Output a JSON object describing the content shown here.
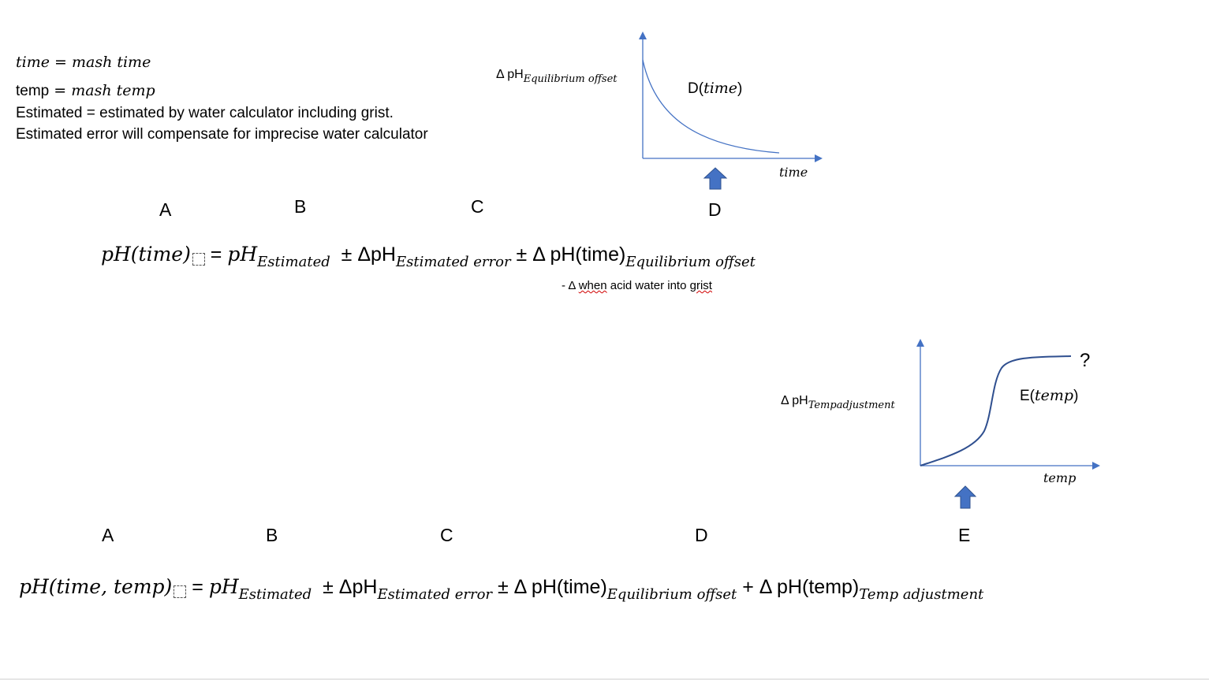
{
  "definitions": {
    "time_def": "time = mash time",
    "temp_word": "temp",
    "temp_eq": " = mash temp",
    "estimated_note": "Estimated = estimated by water calculator including grist.",
    "error_note": "Estimated error will compensate for imprecise water calculator"
  },
  "equation1": {
    "letters": [
      "A",
      "B",
      "C",
      "D"
    ],
    "lhs": "pH(time)",
    "eq": " = ",
    "b_main": "pH",
    "b_sub": "Estimated",
    "c_pre": "± ΔpH",
    "c_sub": "Estimated error",
    "d_pre": "± Δ pH(time)",
    "d_sub": "Equilibrium offset",
    "note_dash": "- Δ ",
    "note_text1": "when",
    "note_text2": " acid water into ",
    "note_text3": "grist"
  },
  "equation2": {
    "letters": [
      "A",
      "B",
      "C",
      "D",
      "E"
    ],
    "lhs": "pH(time, temp)",
    "eq": " = ",
    "b_main": "pH",
    "b_sub": "Estimated",
    "c_pre": "± ΔpH",
    "c_sub": "Estimated error",
    "d_pre": "± Δ pH(time)",
    "d_sub": "Equilibrium offset",
    "e_pre": "+ Δ pH(temp)",
    "e_sub": "Temp adjustment"
  },
  "graph1": {
    "y_label_main": "Δ pH",
    "y_label_sub": "Equilibrium offset",
    "x_label": "time",
    "curve_label_pre": "D(",
    "curve_label_var": "time",
    "curve_label_post": ")",
    "accent": "#4472c4"
  },
  "graph2": {
    "y_label_main": "Δ pH",
    "y_label_sub": "Tempadjustment",
    "x_label": "temp",
    "curve_label_pre": "E(",
    "curve_label_var": "temp",
    "curve_label_post": ")",
    "question": "?",
    "accent": "#4472c4",
    "curve_color": "#2f4f8f"
  }
}
